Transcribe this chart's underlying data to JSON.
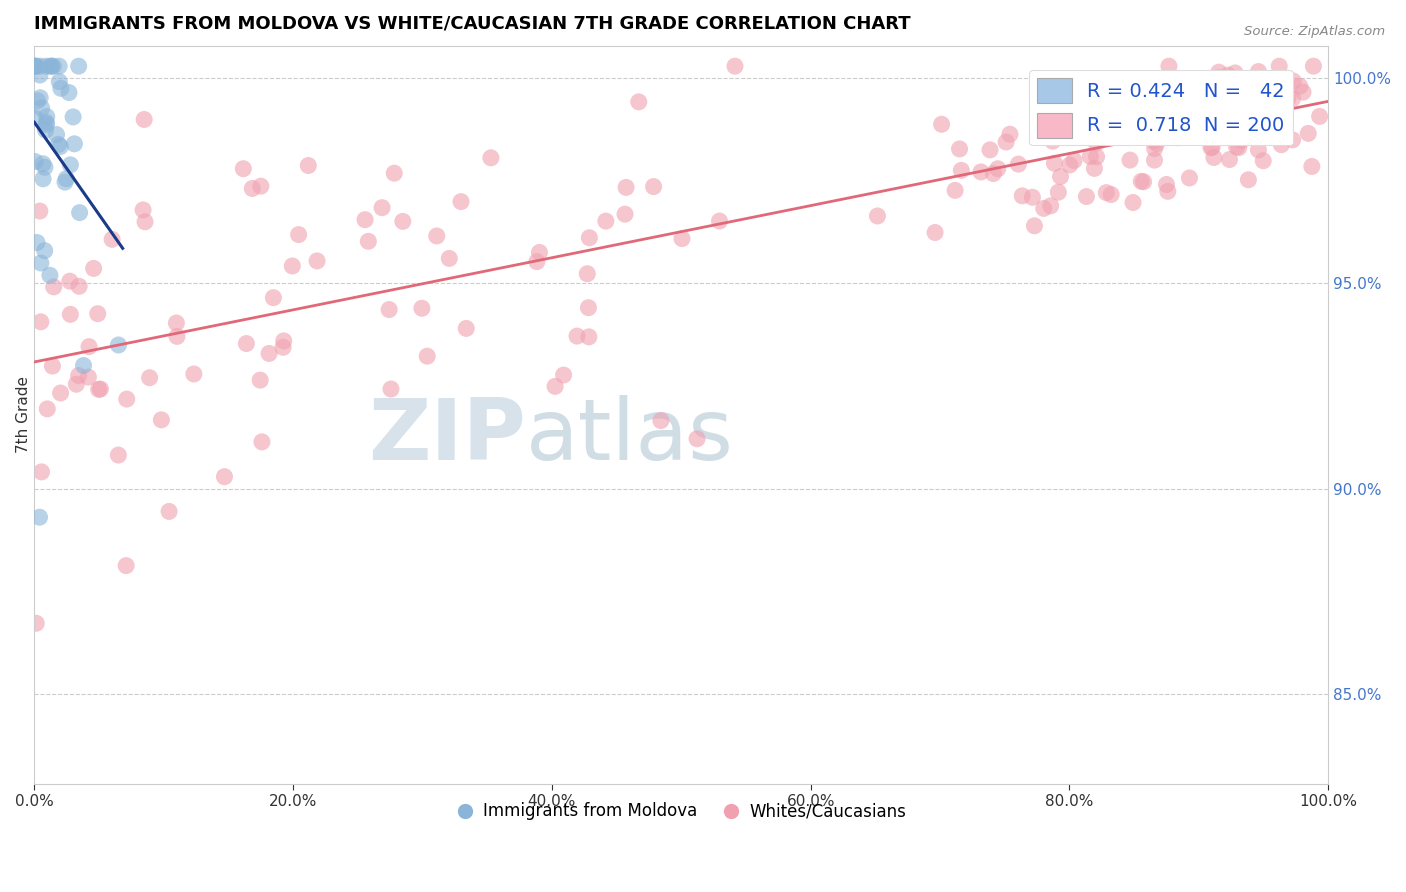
{
  "title": "IMMIGRANTS FROM MOLDOVA VS WHITE/CAUCASIAN 7TH GRADE CORRELATION CHART",
  "source": "Source: ZipAtlas.com",
  "ylabel": "7th Grade",
  "ylabel_right_ticks": [
    "100.0%",
    "95.0%",
    "90.0%",
    "85.0%"
  ],
  "ylabel_right_values": [
    1.0,
    0.95,
    0.9,
    0.85
  ],
  "watermark_zip": "ZIP",
  "watermark_atlas": "atlas",
  "blue_color": "#8ab4d8",
  "pink_color": "#f0a0b0",
  "blue_line_color": "#1a3a8a",
  "pink_line_color": "#e06878",
  "xmin": 0.0,
  "xmax": 1.0,
  "ymin": 0.828,
  "ymax": 1.008,
  "blue_legend_color": "#a8c8e8",
  "pink_legend_color": "#f8b8c8",
  "legend_text_color": "#2255cc",
  "right_axis_color": "#4477cc",
  "grid_color": "#cccccc"
}
